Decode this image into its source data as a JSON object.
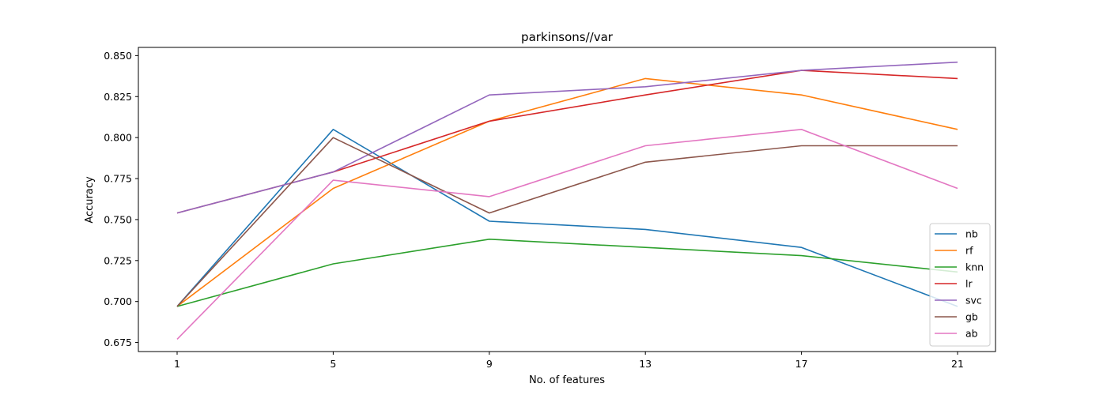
{
  "chart_data": {
    "type": "line",
    "title": "parkinsons//var",
    "xlabel": "No. of features",
    "ylabel": "Accuracy",
    "x": [
      1,
      5,
      9,
      13,
      17,
      21
    ],
    "xticks": [
      "1",
      "5",
      "9",
      "13",
      "17",
      "21"
    ],
    "yticks": [
      "0.675",
      "0.700",
      "0.725",
      "0.750",
      "0.775",
      "0.800",
      "0.825",
      "0.850"
    ],
    "ylim": [
      0.6695,
      0.855
    ],
    "grid": false,
    "legend_position": "bottom-right",
    "series": [
      {
        "name": "nb",
        "color": "#1f77b4",
        "values": [
          0.697,
          0.805,
          0.749,
          0.744,
          0.733,
          0.697
        ]
      },
      {
        "name": "rf",
        "color": "#ff7f0e",
        "values": [
          0.697,
          0.769,
          0.81,
          0.836,
          0.826,
          0.805
        ]
      },
      {
        "name": "knn",
        "color": "#2ca02c",
        "values": [
          0.697,
          0.723,
          0.738,
          0.733,
          0.728,
          0.718
        ]
      },
      {
        "name": "lr",
        "color": "#d62728",
        "values": [
          0.754,
          0.779,
          0.81,
          0.826,
          0.841,
          0.836
        ]
      },
      {
        "name": "svc",
        "color": "#9467bd",
        "values": [
          0.754,
          0.779,
          0.826,
          0.831,
          0.841,
          0.846
        ]
      },
      {
        "name": "gb",
        "color": "#8c564b",
        "values": [
          0.697,
          0.8,
          0.754,
          0.785,
          0.795,
          0.795
        ]
      },
      {
        "name": "ab",
        "color": "#e377c2",
        "values": [
          0.677,
          0.774,
          0.764,
          0.795,
          0.805,
          0.769
        ]
      }
    ]
  }
}
